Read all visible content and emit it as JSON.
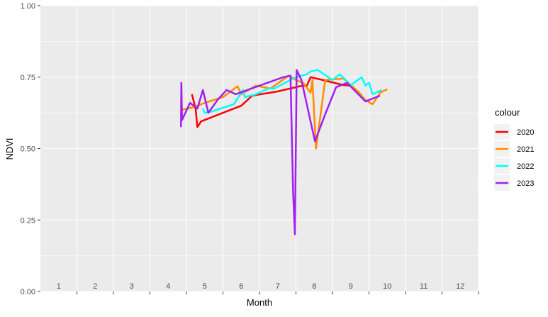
{
  "chart_data": {
    "type": "line",
    "title": "",
    "xlabel": "Month",
    "ylabel": "NDVI",
    "ylim": [
      0,
      1
    ],
    "y_ticks": [
      "0.00",
      "0.25",
      "0.50",
      "0.75",
      "1.00"
    ],
    "y_tick_values": [
      0,
      0.25,
      0.5,
      0.75,
      1.0
    ],
    "x_tick_labels": [
      "1",
      "2",
      "3",
      "4",
      "5",
      "6",
      "7",
      "8",
      "9",
      "10",
      "11",
      "12"
    ],
    "x_range": [
      0.5,
      12.5
    ],
    "legend_title": "colour",
    "legend_position": "right",
    "grid": true,
    "background": "#ebebeb",
    "series": [
      {
        "name": "2020",
        "color": "#ff0000",
        "points": [
          [
            4.65,
            0.69
          ],
          [
            4.75,
            0.64
          ],
          [
            4.8,
            0.575
          ],
          [
            4.9,
            0.595
          ],
          [
            5.5,
            0.625
          ],
          [
            6.0,
            0.65
          ],
          [
            6.3,
            0.685
          ],
          [
            7.0,
            0.7
          ],
          [
            7.4,
            0.712
          ],
          [
            7.6,
            0.718
          ],
          [
            7.8,
            0.72
          ],
          [
            7.9,
            0.75
          ],
          [
            8.3,
            0.738
          ],
          [
            8.8,
            0.722
          ],
          [
            9.0,
            0.72
          ]
        ]
      },
      {
        "name": "2021",
        "color": "#ff8c00",
        "points": [
          [
            4.35,
            0.635
          ],
          [
            4.7,
            0.645
          ],
          [
            5.0,
            0.66
          ],
          [
            5.5,
            0.68
          ],
          [
            5.9,
            0.718
          ],
          [
            6.0,
            0.69
          ],
          [
            6.4,
            0.72
          ],
          [
            6.8,
            0.71
          ],
          [
            7.3,
            0.755
          ],
          [
            7.5,
            0.74
          ],
          [
            7.7,
            0.73
          ],
          [
            7.9,
            0.695
          ],
          [
            7.95,
            0.74
          ],
          [
            8.05,
            0.5
          ],
          [
            8.3,
            0.74
          ],
          [
            8.8,
            0.745
          ],
          [
            9.2,
            0.7
          ],
          [
            9.4,
            0.67
          ],
          [
            9.6,
            0.655
          ],
          [
            9.8,
            0.695
          ],
          [
            10.0,
            0.708
          ]
        ]
      },
      {
        "name": "2022",
        "color": "#00ffff",
        "points": [
          [
            4.95,
            0.64
          ],
          [
            5.0,
            0.625
          ],
          [
            5.2,
            0.63
          ],
          [
            5.8,
            0.655
          ],
          [
            6.05,
            0.705
          ],
          [
            6.1,
            0.68
          ],
          [
            6.4,
            0.69
          ],
          [
            6.75,
            0.71
          ],
          [
            6.9,
            0.71
          ],
          [
            7.5,
            0.75
          ],
          [
            7.8,
            0.76
          ],
          [
            7.9,
            0.77
          ],
          [
            8.1,
            0.775
          ],
          [
            8.5,
            0.74
          ],
          [
            8.7,
            0.76
          ],
          [
            9.0,
            0.722
          ],
          [
            9.3,
            0.75
          ],
          [
            9.4,
            0.72
          ],
          [
            9.5,
            0.73
          ],
          [
            9.6,
            0.69
          ],
          [
            9.85,
            0.705
          ]
        ]
      },
      {
        "name": "2023",
        "color": "#a020f0",
        "points": [
          [
            4.35,
            0.575
          ],
          [
            4.36,
            0.73
          ],
          [
            4.38,
            0.6
          ],
          [
            4.6,
            0.66
          ],
          [
            4.8,
            0.64
          ],
          [
            4.95,
            0.705
          ],
          [
            5.1,
            0.625
          ],
          [
            5.35,
            0.67
          ],
          [
            5.6,
            0.705
          ],
          [
            5.85,
            0.69
          ],
          [
            6.5,
            0.72
          ],
          [
            7.15,
            0.75
          ],
          [
            7.35,
            0.755
          ],
          [
            7.42,
            0.35
          ],
          [
            7.47,
            0.2
          ],
          [
            7.52,
            0.775
          ],
          [
            7.65,
            0.74
          ],
          [
            8.02,
            0.525
          ],
          [
            8.3,
            0.62
          ],
          [
            8.6,
            0.715
          ],
          [
            8.9,
            0.73
          ],
          [
            9.4,
            0.665
          ],
          [
            9.6,
            0.675
          ],
          [
            9.8,
            0.685
          ]
        ]
      }
    ]
  }
}
